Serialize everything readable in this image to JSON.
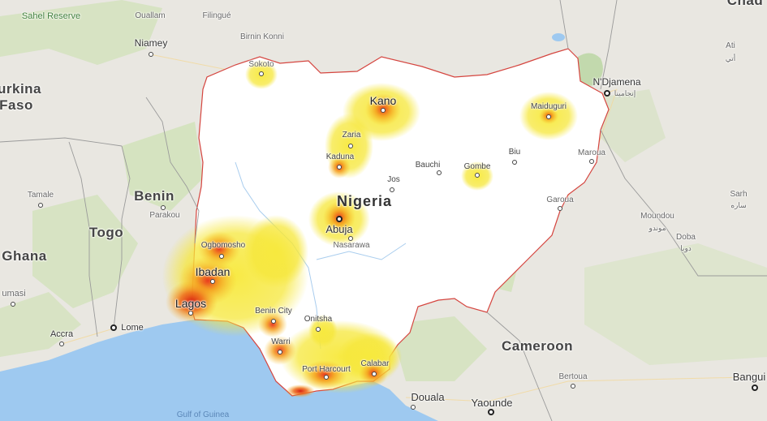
{
  "map": {
    "country_labels": {
      "nigeria": "Nigeria",
      "benin": "Benin",
      "togo": "Togo",
      "ghana": "Ghana",
      "cameroon": "Cameroon",
      "burkina": "urkina",
      "faso": "Faso",
      "chad": "Chad"
    },
    "cities": {
      "niamey": "Niamey",
      "ouallam": "Ouallam",
      "filingue": "Filingué",
      "birnin_konni": "Birnin Konni",
      "sokoto": "Sokoto",
      "kano": "Kano",
      "zaria": "Zaria",
      "kaduna": "Kaduna",
      "bauchi": "Bauchi",
      "gombe": "Gombe",
      "biu": "Biu",
      "maiduguri": "Maiduguri",
      "ndjamena": "N'Djamena",
      "ndjamena_ar": "إنجامينا",
      "ati": "Ati",
      "ati_ar": "أتي",
      "jos": "Jos",
      "abuja": "Abuja",
      "nasarawa": "Nasarawa",
      "ogbomosho": "Ogbomosho",
      "ibadan": "Ibadan",
      "lagos": "Lagos",
      "benin_city": "Benin City",
      "onitsha": "Onitsha",
      "warri": "Warri",
      "port_harcourt": "Port Harcourt",
      "calabar": "Calabar",
      "parakou": "Parakou",
      "tamale": "Tamale",
      "kumasi": "umasi",
      "accra": "Accra",
      "lome": "Lome",
      "maroua": "Maroua",
      "garoua": "Garoua",
      "moundou": "Moundou",
      "moundou_ar": "موندو",
      "doba": "Doba",
      "doba_ar": "دوبا",
      "sarh": "Sarh",
      "sarh_ar": "ساره",
      "bertoua": "Bertoua",
      "douala": "Douala",
      "yaounde": "Yaounde",
      "bangui": "Bangui"
    },
    "water_labels": {
      "gulf_of_guinea": "Gulf of Guinea"
    },
    "park_labels": {
      "sahel_reserve": "Sahel Reserve"
    },
    "heatmap": {
      "description_colors": {
        "low": "#f6e73a",
        "mid": "#f7a21b",
        "high": "#e8331c"
      },
      "points": [
        {
          "city": "Lagos",
          "intensity": 1.0
        },
        {
          "city": "Ibadan",
          "intensity": 0.85
        },
        {
          "city": "Ogbomosho",
          "intensity": 0.55
        },
        {
          "city": "Abuja",
          "intensity": 0.85
        },
        {
          "city": "Kano",
          "intensity": 0.8
        },
        {
          "city": "Kaduna",
          "intensity": 0.6
        },
        {
          "city": "Zaria",
          "intensity": 0.5
        },
        {
          "city": "Sokoto",
          "intensity": 0.4
        },
        {
          "city": "Maiduguri",
          "intensity": 0.5
        },
        {
          "city": "Gombe",
          "intensity": 0.4
        },
        {
          "city": "Benin City",
          "intensity": 0.6
        },
        {
          "city": "Warri",
          "intensity": 0.7
        },
        {
          "city": "Onitsha",
          "intensity": 0.55
        },
        {
          "city": "Port Harcourt",
          "intensity": 0.75
        },
        {
          "city": "Calabar",
          "intensity": 0.6
        }
      ]
    },
    "colors": {
      "land": "#e9e7e1",
      "nigeria_fill": "#ffffff",
      "nigeria_border": "#d5453f",
      "water": "#9ec9f0",
      "forest": "#c3dfa4"
    }
  }
}
